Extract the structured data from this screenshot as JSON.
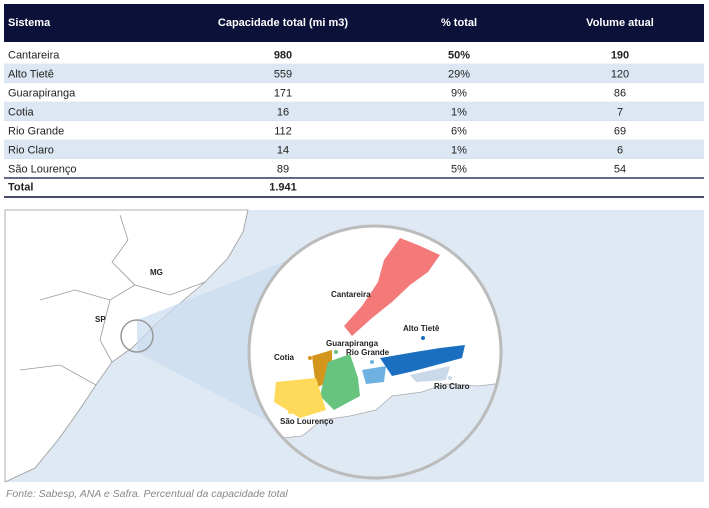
{
  "table": {
    "headers": [
      "Sistema",
      "Capacidade total (mi m3)",
      "% total",
      "Volume atual"
    ],
    "rows": [
      [
        "Cantareira",
        "980",
        "50%",
        "190"
      ],
      [
        "Alto Tietê",
        "559",
        "29%",
        "120"
      ],
      [
        "Guarapiranga",
        "171",
        "9%",
        "86"
      ],
      [
        "Cotia",
        "16",
        "1%",
        "7"
      ],
      [
        "Rio Grande",
        "112",
        "6%",
        "69"
      ],
      [
        "Rio Claro",
        "14",
        "1%",
        "6"
      ],
      [
        "São Lourenço",
        "89",
        "5%",
        "54"
      ]
    ],
    "total": [
      "Total",
      "1.941"
    ]
  },
  "map": {
    "labels": [
      "MG",
      "SP",
      "Cantareira",
      "Alto Tietê",
      "Guarapiranga",
      "Rio Grande",
      "Cotia",
      "Rio Claro",
      "São Lourenço"
    ]
  },
  "footer": {
    "source": "Fonte: Sabesp, ANA e Safra. Percentual da capacidade total"
  }
}
